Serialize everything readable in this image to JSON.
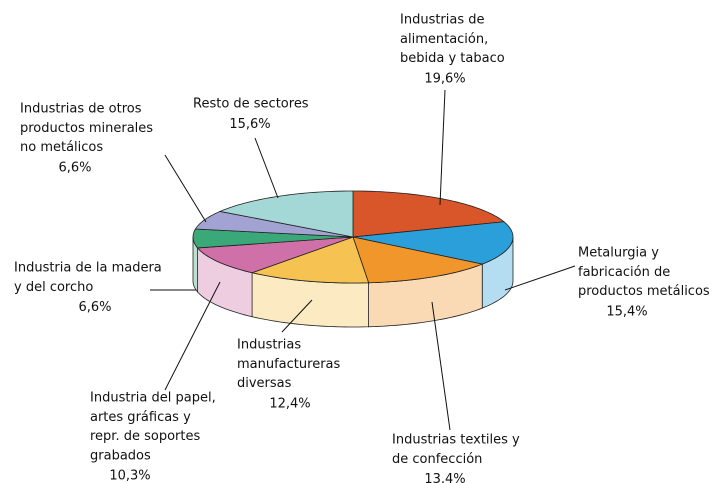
{
  "chart_data": {
    "type": "pie3d",
    "categories": [
      [
        "Industrias de",
        "alimentación,",
        "bebida y tabaco"
      ],
      [
        "Metalurgia y",
        "fabricación de",
        "productos metálicos"
      ],
      [
        "Industrias textiles y",
        "de confección"
      ],
      [
        "Industrias",
        "manufactureras",
        "diversas"
      ],
      [
        "Industria del papel,",
        "artes gráficas y",
        "repr. de soportes",
        "grabados"
      ],
      [
        "Industria de la madera",
        "y del corcho"
      ],
      [
        "Industrias de otros",
        "productos minerales",
        "no metálicos"
      ],
      [
        "Resto de sectores"
      ]
    ],
    "values": [
      19.6,
      15.4,
      13.4,
      12.4,
      10.3,
      6.6,
      6.6,
      15.6
    ],
    "value_labels": [
      "19,6%",
      "15,4%",
      "13,4%",
      "12,4%",
      "10,3%",
      "6,6%",
      "6,6%",
      "15,6%"
    ],
    "colors": [
      "#d9552a",
      "#2a9fd9",
      "#f0962a",
      "#f6c252",
      "#d070a8",
      "#3aa878",
      "#a3a3d3",
      "#a3d8d6"
    ]
  }
}
